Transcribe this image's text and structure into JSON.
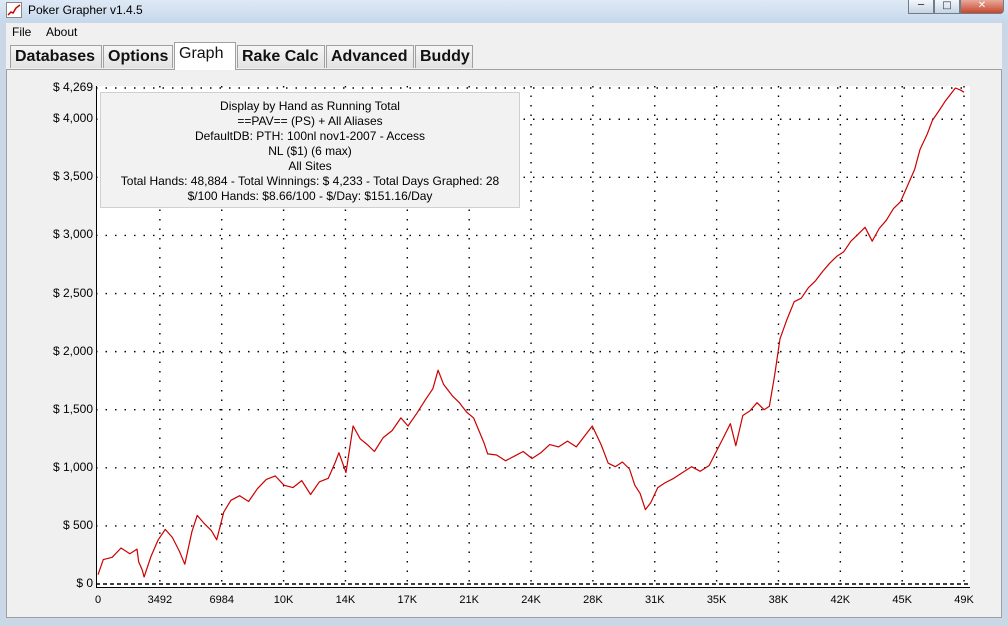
{
  "window": {
    "title": "Poker Grapher v1.4.5",
    "minimize": "─",
    "maximize": "□",
    "close": "✕"
  },
  "menu": {
    "file": "File",
    "about": "About"
  },
  "tabs": [
    {
      "label": "Databases"
    },
    {
      "label": "Options"
    },
    {
      "label": "Graph"
    },
    {
      "label": "Rake Calc"
    },
    {
      "label": "Advanced"
    },
    {
      "label": "Buddy"
    }
  ],
  "active_tab": "Graph",
  "info": {
    "line1": "Display by Hand as Running Total",
    "line2": "==PAV== (PS) + All Aliases",
    "line3": "DefaultDB: PTH: 100nl nov1-2007 - Access",
    "line4": "NL ($1) (6 max)",
    "line5": "All Sites",
    "line6": "Total Hands: 48,884 - Total Winnings: $ 4,233 - Total Days Graphed: 28",
    "line7": "$/100 Hands: $8.66/100 - $/Day: $151.16/Day"
  },
  "colors": {
    "line": "#cc0000",
    "grid": "#000000"
  },
  "chart_data": {
    "type": "line",
    "grid": true,
    "y_tick_labels": [
      "$ 4,269",
      "$ 4,000",
      "$ 3,500",
      "$ 3,000",
      "$ 2,500",
      "$ 2,000",
      "$ 1,500",
      "$ 1,000",
      "$ 500",
      "$ 0"
    ],
    "y_tick_values": [
      4269,
      4000,
      3500,
      3000,
      2500,
      2000,
      1500,
      1000,
      500,
      0
    ],
    "x_tick_labels": [
      "0",
      "3492",
      "6984",
      "10K",
      "14K",
      "17K",
      "21K",
      "24K",
      "28K",
      "31K",
      "35K",
      "38K",
      "42K",
      "45K",
      "49K"
    ],
    "x_tick_values": [
      0,
      3492,
      6984,
      10476,
      13968,
      17460,
      20952,
      24444,
      27936,
      31428,
      34920,
      38412,
      41904,
      45396,
      48884
    ],
    "xlim": [
      0,
      48884
    ],
    "ylim": [
      0,
      4269
    ],
    "series": [
      {
        "x": [
          0,
          300,
          800,
          1300,
          1800,
          2200,
          2300,
          2500,
          2600,
          3000,
          3400,
          3800,
          4200,
          4600,
          4900,
          5300,
          5600,
          6000,
          6400,
          6700,
          7100,
          7500,
          8000,
          8500,
          9000,
          9500,
          10000,
          10500,
          11000,
          11500,
          12000,
          12500,
          13000,
          13400,
          13600,
          14000,
          14400,
          14800,
          15200,
          15600,
          16100,
          16600,
          17100,
          17500,
          18000,
          18500,
          18900,
          19200,
          19500,
          20000,
          20400,
          20800,
          21200,
          21500,
          21800,
          22000,
          22500,
          23000,
          23500,
          24000,
          24500,
          25000,
          25500,
          26000,
          26500,
          27000,
          27500,
          27900,
          28400,
          28800,
          29200,
          29600,
          30000,
          30300,
          30600,
          30900,
          31200,
          31600,
          32000,
          32500,
          33000,
          33500,
          34000,
          34500,
          34900,
          35300,
          35700,
          36000,
          36400,
          36800,
          37200,
          37600,
          37900,
          38200,
          38500,
          38900,
          39300,
          39700,
          40100,
          40500,
          40900,
          41300,
          41700,
          42100,
          42500,
          42900,
          43300,
          43700,
          44100,
          44500,
          44900,
          45300,
          45700,
          46100,
          46400,
          46800,
          47100,
          47500,
          47800,
          48100,
          48400,
          48700,
          48884
        ],
        "y": [
          80,
          210,
          230,
          310,
          260,
          300,
          190,
          120,
          60,
          240,
          380,
          470,
          400,
          280,
          170,
          450,
          590,
          520,
          460,
          380,
          620,
          720,
          760,
          710,
          820,
          900,
          930,
          850,
          830,
          890,
          770,
          880,
          910,
          1050,
          1130,
          960,
          1360,
          1250,
          1200,
          1140,
          1260,
          1320,
          1430,
          1360,
          1470,
          1590,
          1680,
          1840,
          1720,
          1620,
          1560,
          1480,
          1430,
          1320,
          1210,
          1120,
          1110,
          1060,
          1100,
          1140,
          1080,
          1130,
          1200,
          1180,
          1230,
          1180,
          1280,
          1360,
          1200,
          1040,
          1010,
          1050,
          990,
          850,
          780,
          640,
          700,
          830,
          870,
          910,
          960,
          1010,
          970,
          1020,
          1140,
          1260,
          1380,
          1190,
          1450,
          1490,
          1560,
          1500,
          1530,
          1800,
          2110,
          2280,
          2430,
          2460,
          2550,
          2610,
          2690,
          2760,
          2820,
          2860,
          2950,
          3010,
          3070,
          2950,
          3060,
          3130,
          3230,
          3290,
          3430,
          3570,
          3740,
          3870,
          3990,
          4080,
          4150,
          4210,
          4269,
          4250,
          4233
        ]
      }
    ]
  }
}
